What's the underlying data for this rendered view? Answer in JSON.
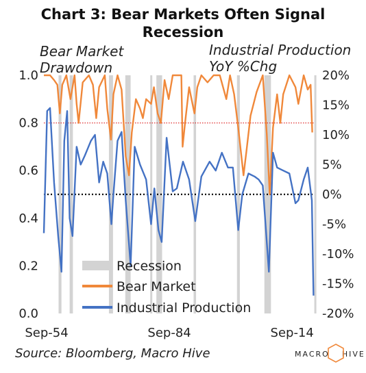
{
  "title_line1": "Chart 3: Bear Markets Often Signal",
  "title_line2": "Recession",
  "left_axis_title_line1": "Bear Market",
  "left_axis_title_line2": "Drawdown",
  "right_axis_title_line1": "Industrial Production",
  "right_axis_title_line2": "YoY %Chg",
  "source": "Source: Bloomberg, Macro Hive",
  "logo": {
    "text_left": "MACRO",
    "text_right": "HIVE",
    "accent": "#f0883a"
  },
  "colors": {
    "recession": "#d3d3d3",
    "bear": "#f0883a",
    "ip": "#4472c4",
    "refline_red": "#e03030",
    "refline_black": "#000000"
  },
  "chart_data": {
    "type": "line",
    "x_tick_labels": [
      "Sep-54",
      "Sep-84",
      "Sep-14"
    ],
    "x_tick_years": [
      1954.67,
      1984.67,
      2014.67
    ],
    "x_range": [
      1954.0,
      2020.0
    ],
    "left_axis": {
      "ylim": [
        0.0,
        1.0
      ],
      "ticks": [
        "0.0",
        "0.2",
        "0.4",
        "0.6",
        "0.8",
        "1.0"
      ],
      "tick_values": [
        0,
        0.2,
        0.4,
        0.6,
        0.8,
        1.0
      ]
    },
    "right_axis": {
      "ylim": [
        -20,
        20
      ],
      "ticks": [
        "-20%",
        "-15%",
        "-10%",
        "-5%",
        "0%",
        "5%",
        "10%",
        "15%",
        "20%"
      ],
      "tick_values": [
        -20,
        -15,
        -10,
        -5,
        0,
        5,
        10,
        15,
        20
      ]
    },
    "reference_lines": [
      {
        "axis": "left",
        "value": 0.8,
        "style": "dotted",
        "color": "#e03030"
      },
      {
        "axis": "left",
        "value": 0.5,
        "style": "dotted",
        "color": "#000000"
      }
    ],
    "legend": [
      "Recession",
      "Bear Market",
      "Industrial Production"
    ],
    "recessions": [
      [
        1957.6,
        1958.3
      ],
      [
        1960.3,
        1961.1
      ],
      [
        1969.9,
        1970.9
      ],
      [
        1973.9,
        1975.2
      ],
      [
        1980.0,
        1980.5
      ],
      [
        1981.5,
        1982.9
      ],
      [
        1990.6,
        1991.2
      ],
      [
        2001.2,
        2001.9
      ],
      [
        2007.9,
        2009.5
      ],
      [
        2020.1,
        2020.4
      ]
    ],
    "series": [
      {
        "name": "Bear Market",
        "axis": "left",
        "x": [
          1954.0,
          1955.5,
          1956.5,
          1957.3,
          1957.9,
          1958.5,
          1959.5,
          1960.5,
          1961.5,
          1962.0,
          1962.5,
          1963.5,
          1965.0,
          1966.0,
          1966.8,
          1967.5,
          1968.9,
          1969.5,
          1970.4,
          1971.0,
          1972.0,
          1973.0,
          1974.0,
          1974.8,
          1975.5,
          1976.5,
          1977.5,
          1978.2,
          1979.0,
          1980.2,
          1980.9,
          1981.8,
          1982.6,
          1983.5,
          1984.5,
          1985.5,
          1986.5,
          1987.6,
          1987.9,
          1988.5,
          1989.5,
          1990.8,
          1991.5,
          1992.5,
          1994.0,
          1995.5,
          1997.0,
          1998.6,
          1999.5,
          2000.5,
          2001.5,
          2002.8,
          2003.5,
          2004.5,
          2006.0,
          2007.5,
          2008.5,
          2009.2,
          2010.0,
          2011.0,
          2011.8,
          2012.5,
          2014.0,
          2015.5,
          2016.2,
          2017.5,
          2018.5,
          2019.2,
          2019.6
        ],
        "y": [
          1.0,
          1.0,
          0.98,
          0.96,
          0.84,
          0.96,
          1.0,
          0.9,
          1.0,
          0.88,
          0.8,
          0.97,
          1.0,
          0.96,
          0.82,
          0.95,
          1.0,
          0.86,
          0.73,
          0.92,
          1.0,
          0.94,
          0.66,
          0.58,
          0.76,
          0.9,
          0.86,
          0.82,
          0.9,
          0.88,
          0.95,
          0.84,
          0.8,
          0.98,
          0.9,
          1.0,
          1.0,
          1.0,
          0.7,
          0.8,
          0.95,
          0.84,
          0.95,
          1.0,
          0.97,
          1.0,
          1.0,
          0.9,
          1.0,
          0.92,
          0.78,
          0.58,
          0.68,
          0.83,
          0.93,
          1.0,
          0.75,
          0.5,
          0.78,
          0.92,
          0.8,
          0.92,
          1.0,
          0.95,
          0.88,
          1.0,
          0.94,
          0.96,
          0.76
        ]
      },
      {
        "name": "Industrial Production",
        "axis": "right",
        "x": [
          1954.0,
          1954.8,
          1955.5,
          1956.5,
          1957.5,
          1958.3,
          1959.0,
          1959.7,
          1960.3,
          1961.0,
          1962.0,
          1963.0,
          1964.0,
          1965.5,
          1966.5,
          1967.5,
          1968.5,
          1969.5,
          1970.5,
          1971.0,
          1972.0,
          1973.0,
          1974.0,
          1975.2,
          1976.2,
          1977.5,
          1979.0,
          1980.2,
          1981.0,
          1982.0,
          1982.8,
          1984.0,
          1985.5,
          1986.5,
          1988.0,
          1989.5,
          1991.0,
          1992.5,
          1994.5,
          1996.0,
          1997.5,
          1999.0,
          2000.2,
          2001.5,
          2002.5,
          2004.0,
          2005.5,
          2006.5,
          2007.5,
          2009.0,
          2010.0,
          2011.0,
          2012.5,
          2014.0,
          2015.5,
          2016.2,
          2017.5,
          2018.5,
          2019.5,
          2019.9
        ],
        "y": [
          -6.5,
          14.0,
          14.5,
          2.0,
          -7.0,
          -13.0,
          9.0,
          14.0,
          -4.0,
          -7.0,
          8.0,
          5.0,
          6.5,
          9.0,
          10.0,
          2.0,
          5.5,
          3.5,
          -5.0,
          0.0,
          9.0,
          10.5,
          -1.0,
          -12.0,
          8.0,
          5.0,
          2.5,
          -5.0,
          1.0,
          -6.0,
          -8.0,
          9.5,
          0.5,
          1.0,
          5.5,
          2.5,
          -4.5,
          3.0,
          5.5,
          4.0,
          7.0,
          4.5,
          4.5,
          -6.0,
          0.0,
          3.5,
          3.0,
          2.5,
          1.5,
          -13.0,
          7.0,
          4.5,
          4.0,
          3.5,
          -1.5,
          -1.0,
          2.5,
          4.5,
          -1.0,
          -17.0
        ]
      }
    ]
  }
}
